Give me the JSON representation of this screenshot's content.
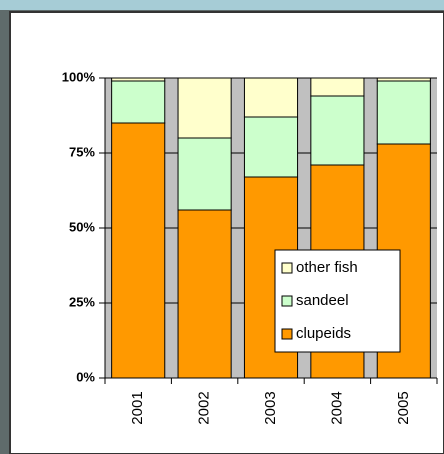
{
  "chart_data": {
    "type": "stacked_bar",
    "categories": [
      "2001",
      "2002",
      "2003",
      "2004",
      "2005"
    ],
    "series": [
      {
        "name": "clupeids",
        "color": "#ff9900",
        "values": [
          85,
          56,
          67,
          71,
          78
        ]
      },
      {
        "name": "sandeel",
        "color": "#ccffcc",
        "values": [
          14,
          24,
          20,
          23,
          21
        ]
      },
      {
        "name": "other fish",
        "color": "#ffffcc",
        "values": [
          1,
          20,
          13,
          6,
          1
        ]
      }
    ],
    "ylim": [
      0,
      100
    ],
    "yticks": [
      {
        "value": 0,
        "label": "0%"
      },
      {
        "value": 25,
        "label": "25%"
      },
      {
        "value": 50,
        "label": "50%"
      },
      {
        "value": 75,
        "label": "75%"
      },
      {
        "value": 100,
        "label": "100%"
      }
    ],
    "grid": true,
    "plot_background": "#c0c0c0",
    "legend": "lower-right"
  }
}
